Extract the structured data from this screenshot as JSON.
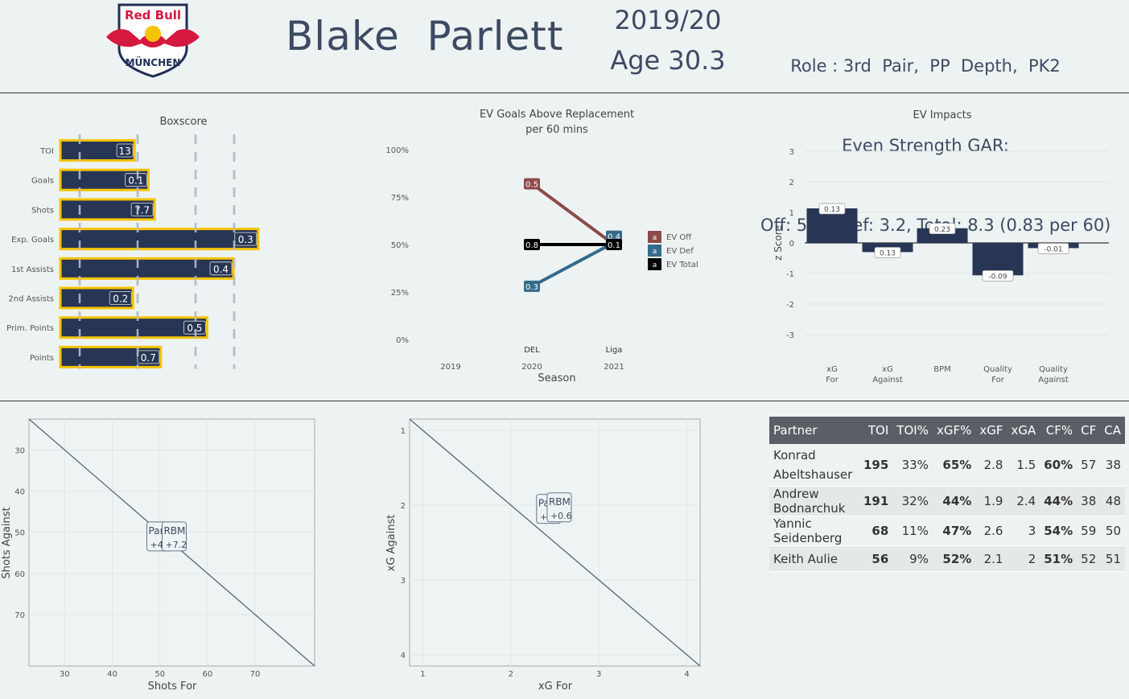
{
  "header": {
    "logo": {
      "top": "Red Bull",
      "bottom": "MÜNCHEN"
    },
    "player_name": "Blake  Parlett",
    "season": "2019/20",
    "age": "Age 30.3",
    "role_line": "Role : 3rd  Pair,  PP  Depth,  PK2",
    "gar_heading": "Even Strength GAR:",
    "gar_line": "Off: 5.1,  Def: 3.2, Total: 8.3 (0.83 per 60)"
  },
  "colors": {
    "bar_fill": "#283655",
    "bar_outline": "#f5c400",
    "ev_off": "#8d4a4a",
    "ev_def": "#336b8c",
    "ev_total": "#000000"
  },
  "chart_data": [
    {
      "type": "bar",
      "orientation": "horizontal",
      "title": "Boxscore",
      "categories": [
        "TOI",
        "Goals",
        "Shots",
        "Exp. Goals",
        "1st Assists",
        "2nd Assists",
        "Prim. Points",
        "Points"
      ],
      "values": [
        0.48,
        0.57,
        0.61,
        1.28,
        1.12,
        0.47,
        0.95,
        0.65
      ],
      "labels": [
        "13",
        "0.1",
        "7.7",
        "0.3",
        "0.4",
        "0.2",
        "0.5",
        "0.7"
      ],
      "reference_lines": [
        0.125,
        0.5,
        0.875,
        1.125
      ],
      "xlim": [
        0,
        1.25
      ]
    },
    {
      "type": "line",
      "title": "EV Goals Above Replacement",
      "subtitle": "per 60 mins",
      "xlabel": "Season",
      "x_ticks": [
        "2019",
        "2020",
        "2021"
      ],
      "league_labels": [
        {
          "x": 2020,
          "label": "DEL"
        },
        {
          "x": 2021,
          "label": "Liga"
        }
      ],
      "y_ticks": [
        "100%",
        "75%",
        "50%",
        "25%",
        "0%"
      ],
      "ylim": [
        0,
        1
      ],
      "series": [
        {
          "name": "EV Off",
          "x": [
            2020,
            2021
          ],
          "values": [
            0.82,
            0.5
          ],
          "labels": [
            "0.5",
            ""
          ]
        },
        {
          "name": "EV Def",
          "x": [
            2020,
            2021
          ],
          "values": [
            0.28,
            0.51
          ],
          "labels": [
            "0.3",
            "0.4"
          ]
        },
        {
          "name": "EV Total",
          "x": [
            2020,
            2021
          ],
          "values": [
            0.5,
            0.5
          ],
          "labels": [
            "0.8",
            "0.1"
          ]
        }
      ],
      "legend": {
        "position": "right",
        "key_glyph": "a"
      }
    },
    {
      "type": "bar",
      "title": "EV  Impacts",
      "ylabel": "z Score",
      "ylim": [
        -3,
        3
      ],
      "y_ticks": [
        "3",
        "2",
        "1",
        "0",
        "-1",
        "-2",
        "-3"
      ],
      "categories": [
        "xG For",
        "xG Against",
        "BPM",
        "Quality For",
        "Quality Against"
      ],
      "values": [
        1.13,
        -0.3,
        0.48,
        -1.06,
        -0.17
      ],
      "labels": [
        "0.13",
        "0.13",
        "0.23",
        "-0.09",
        "-0.01"
      ]
    },
    {
      "type": "scatter",
      "xlabel": "Shots For",
      "ylabel": "Shots Against",
      "x_ticks": [
        "30",
        "40",
        "50",
        "60",
        "70"
      ],
      "y_ticks": [
        "30",
        "40",
        "50",
        "60",
        "70"
      ],
      "xlim": [
        22.5,
        82.5
      ],
      "ylim": [
        22.5,
        82.5
      ],
      "y_reversed": true,
      "points": [
        {
          "name": "Par",
          "value": "+4",
          "x": 49.8,
          "y": 51.0
        },
        {
          "name": "RBM",
          "value": "+7.2",
          "x": 53.0,
          "y": 51.0
        }
      ]
    },
    {
      "type": "scatter",
      "xlabel": "xG For",
      "ylabel": "xG Against",
      "x_ticks": [
        "1",
        "2",
        "3",
        "4"
      ],
      "y_ticks": [
        "1",
        "2",
        "3",
        "4"
      ],
      "xlim": [
        0.85,
        4.15
      ],
      "ylim": [
        0.85,
        4.15
      ],
      "y_reversed": true,
      "points": [
        {
          "name": "Pa",
          "value": "+",
          "x": 2.43,
          "y": 2.05
        },
        {
          "name": "RBM",
          "value": "+0.6",
          "x": 2.55,
          "y": 2.03
        }
      ]
    }
  ],
  "partners_table": {
    "headers": [
      "Partner",
      "TOI",
      "TOI%",
      "xGF%",
      "xGF",
      "xGA",
      "CF%",
      "CF",
      "CA"
    ],
    "rows": [
      [
        "Konrad Abeltshauser",
        "195",
        "33%",
        "65%",
        "2.8",
        "1.5",
        "60%",
        "57",
        "38"
      ],
      [
        "Andrew Bodnarchuk",
        "191",
        "32%",
        "44%",
        "1.9",
        "2.4",
        "44%",
        "38",
        "48"
      ],
      [
        "Yannic Seidenberg",
        "68",
        "11%",
        "47%",
        "2.6",
        "3",
        "54%",
        "59",
        "50"
      ],
      [
        "Keith Aulie",
        "56",
        "9%",
        "52%",
        "2.1",
        "2",
        "51%",
        "52",
        "51"
      ]
    ]
  }
}
